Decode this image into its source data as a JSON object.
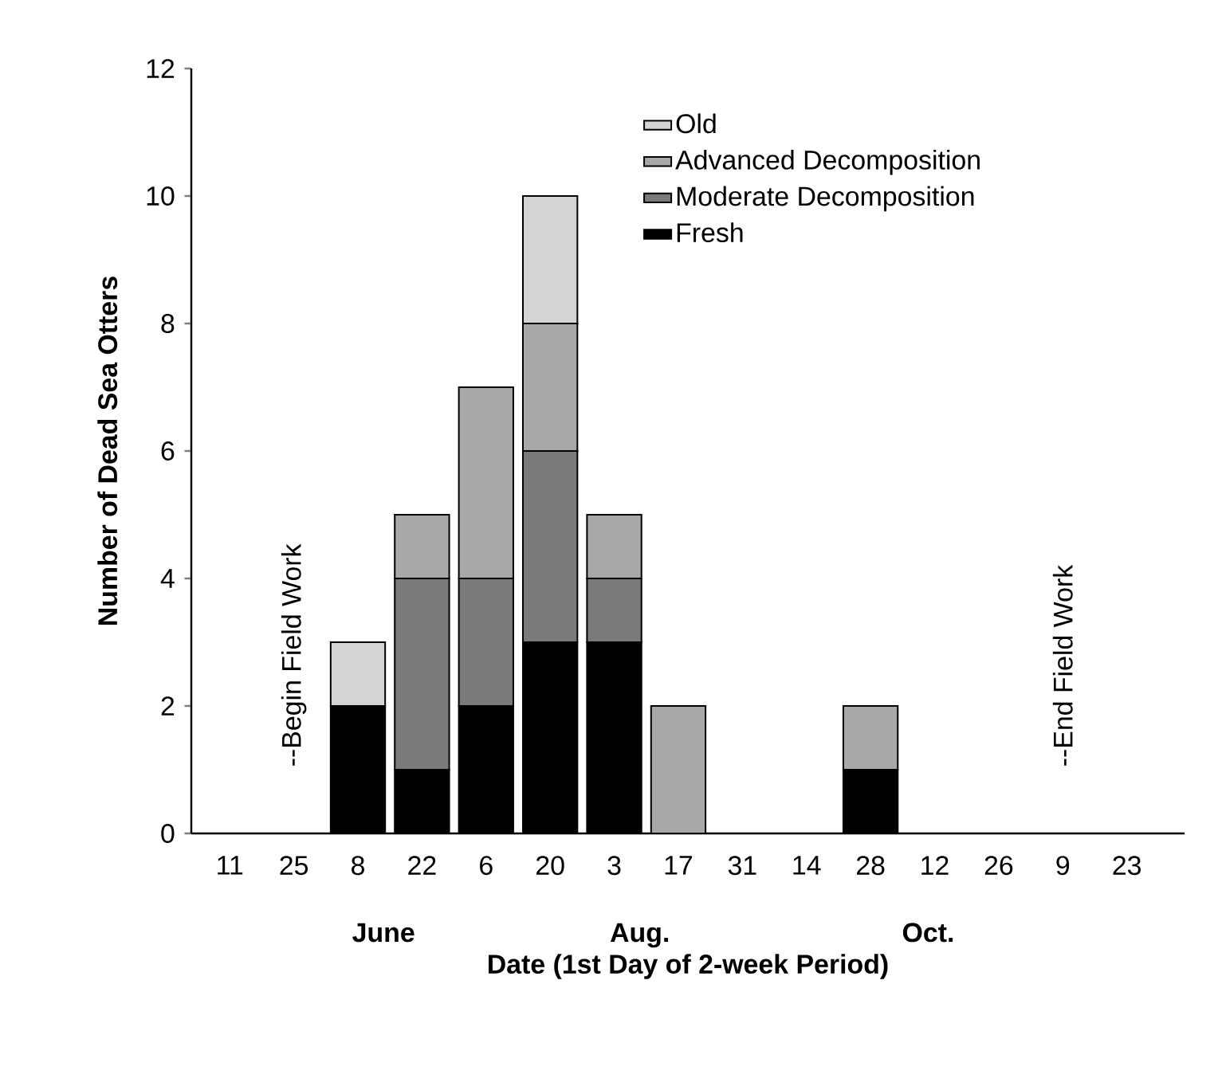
{
  "chart_data": {
    "type": "bar",
    "stacked": true,
    "xlabel": "Date (1st Day of 2-week Period)",
    "ylabel": "Number of Dead Sea Otters",
    "categories": [
      "11",
      "25",
      "8",
      "22",
      "6",
      "20",
      "3",
      "17",
      "31",
      "14",
      "28",
      "12",
      "26",
      "9",
      "23"
    ],
    "series": [
      {
        "name": "Fresh",
        "color": "#000000",
        "values": [
          0,
          0,
          2,
          1,
          2,
          3,
          3,
          0,
          0,
          0,
          1,
          0,
          0,
          0,
          0
        ]
      },
      {
        "name": "Moderate Decomposition",
        "color": "#7a7a7a",
        "values": [
          0,
          0,
          0,
          3,
          2,
          3,
          1,
          0,
          0,
          0,
          0,
          0,
          0,
          0,
          0
        ]
      },
      {
        "name": "Advanced Decomposition",
        "color": "#a8a8a8",
        "values": [
          0,
          0,
          0,
          1,
          3,
          2,
          1,
          2,
          0,
          0,
          1,
          0,
          0,
          0,
          0
        ]
      },
      {
        "name": "Old",
        "color": "#d4d4d4",
        "values": [
          0,
          0,
          1,
          0,
          0,
          2,
          0,
          0,
          0,
          0,
          0,
          0,
          0,
          0,
          0
        ]
      }
    ],
    "ylim": [
      0,
      12
    ],
    "yticks": [
      0,
      2,
      4,
      6,
      8,
      10,
      12
    ],
    "legend": "top right",
    "annotations": [
      "--Begin Field Work",
      "--End Field Work",
      "June",
      "Aug.",
      "Oct."
    ]
  }
}
